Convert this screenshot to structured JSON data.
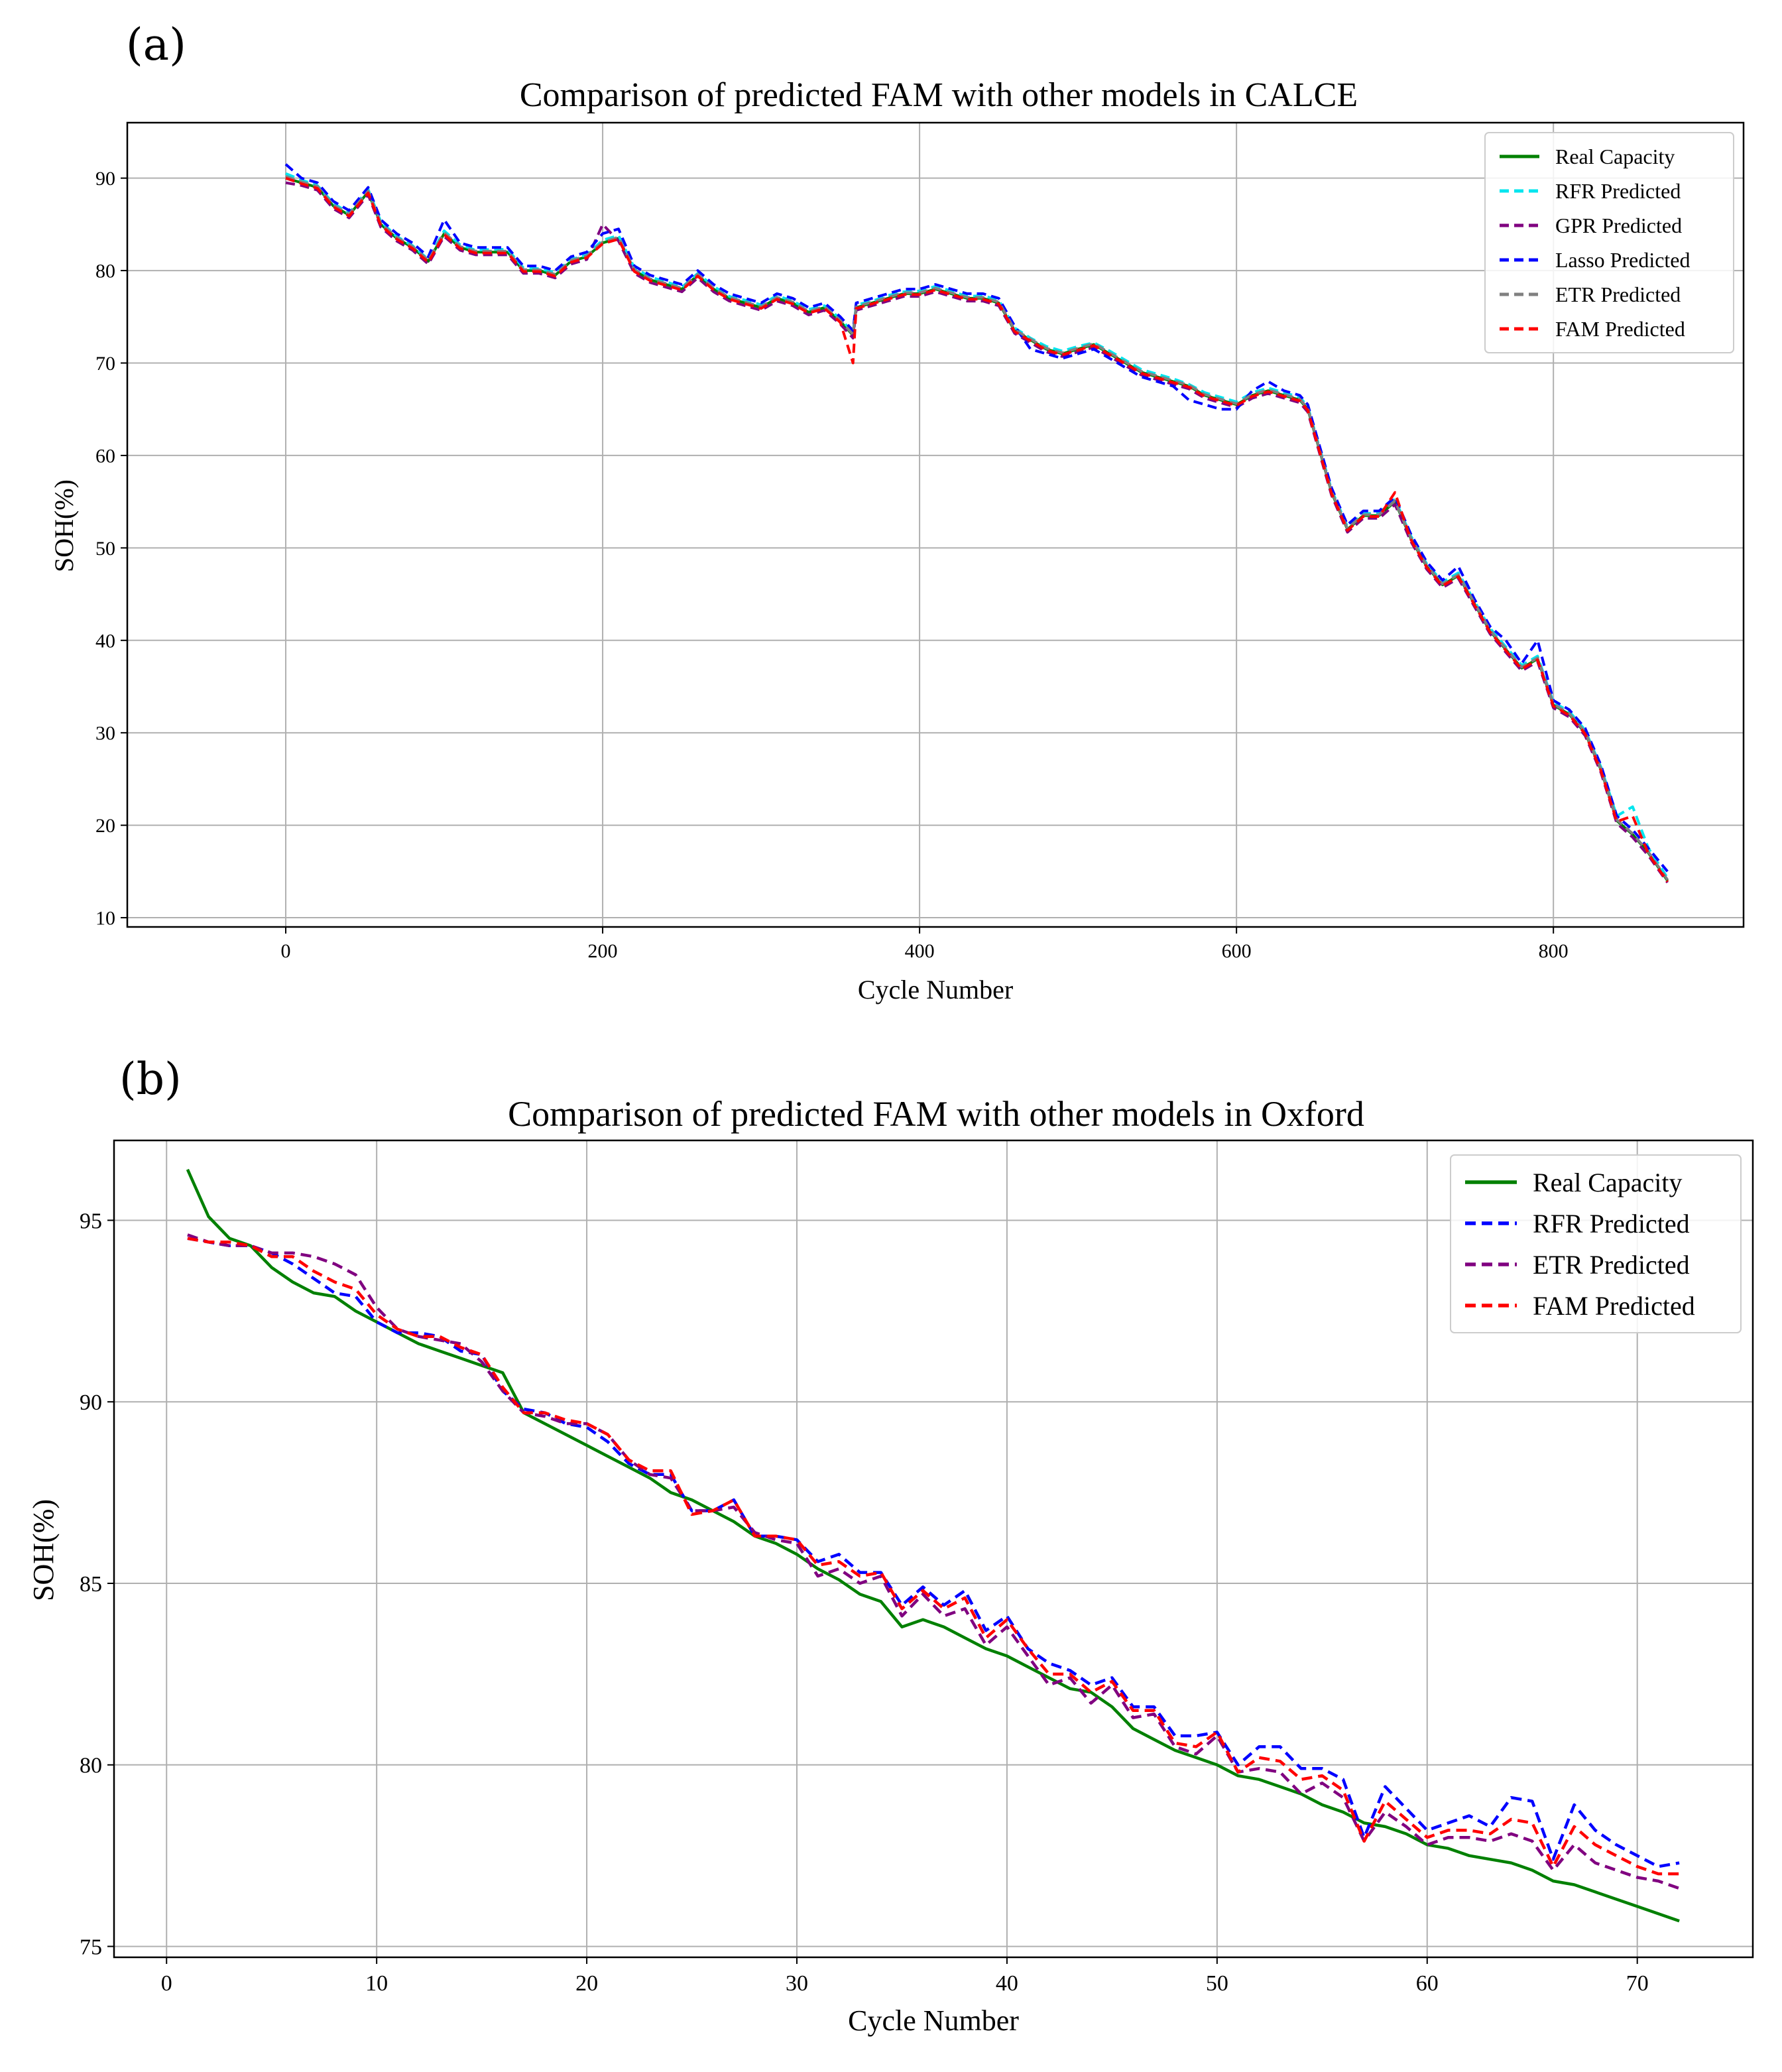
{
  "chart_data": [
    {
      "type": "line",
      "panel_label": "(a)",
      "title": "Comparison of predicted FAM  with other models in CALCE",
      "xlabel": "Cycle Number",
      "ylabel": "SOH(%)",
      "xlim": [
        -100,
        920
      ],
      "ylim": [
        9,
        96
      ],
      "xticks": [
        0,
        200,
        400,
        600,
        800
      ],
      "yticks": [
        10,
        20,
        30,
        40,
        50,
        60,
        70,
        80,
        90
      ],
      "grid": true,
      "legend_position": "top-right",
      "x": [
        0,
        10,
        20,
        30,
        40,
        52,
        60,
        70,
        80,
        90,
        100,
        110,
        120,
        130,
        140,
        150,
        160,
        170,
        180,
        190,
        200,
        210,
        220,
        230,
        240,
        250,
        260,
        270,
        280,
        290,
        300,
        310,
        320,
        330,
        340,
        350,
        358,
        360,
        370,
        380,
        390,
        400,
        410,
        420,
        430,
        440,
        450,
        460,
        470,
        480,
        490,
        500,
        510,
        520,
        530,
        540,
        550,
        560,
        570,
        580,
        590,
        600,
        610,
        620,
        630,
        640,
        645,
        650,
        660,
        670,
        680,
        690,
        700,
        710,
        720,
        730,
        740,
        750,
        760,
        770,
        780,
        790,
        800,
        810,
        820,
        830,
        840,
        850,
        860,
        872
      ],
      "series": [
        {
          "name": "Real Capacity",
          "color": "#008000",
          "style": "solid",
          "values": [
            90,
            89.5,
            89,
            87,
            86,
            88.5,
            85,
            83.5,
            82.5,
            81,
            84,
            82.5,
            82,
            82,
            82,
            80,
            80,
            79.5,
            81,
            81.5,
            83,
            83.5,
            80,
            79,
            78.5,
            78,
            79.5,
            78,
            77,
            76.5,
            76,
            77,
            76.5,
            75.5,
            76,
            74.5,
            73,
            76,
            76.5,
            77,
            77.5,
            77.5,
            78,
            77.5,
            77,
            77,
            76.5,
            73.5,
            72.5,
            71.5,
            71,
            71.5,
            72,
            71,
            70,
            69,
            68.5,
            68,
            67.5,
            66.5,
            66,
            65.5,
            66.5,
            67,
            66.5,
            66,
            65,
            62,
            56,
            52,
            53.5,
            53.5,
            55,
            51,
            48,
            46,
            47,
            44,
            41,
            39,
            37,
            38,
            33,
            32,
            30,
            26,
            20.5,
            19,
            17,
            14
          ]
        },
        {
          "name": "RFR Predicted",
          "color": "#00e5ee",
          "style": "dashed",
          "values": [
            90.5,
            89.8,
            89.2,
            87.3,
            86.2,
            88.8,
            85.3,
            83.7,
            82.7,
            81.2,
            84.3,
            82.8,
            82.2,
            82.3,
            82.3,
            80.3,
            80.2,
            79.8,
            81.2,
            81.7,
            83.3,
            83.8,
            80.3,
            79.3,
            78.8,
            78.2,
            79.7,
            78.3,
            77.2,
            76.8,
            76.3,
            77.3,
            76.7,
            75.8,
            76.2,
            74.8,
            73.3,
            76.3,
            76.7,
            77.3,
            77.7,
            77.8,
            78.3,
            77.8,
            77.2,
            77.3,
            76.8,
            73.8,
            72.7,
            71.8,
            71.3,
            71.8,
            72.2,
            71.3,
            70.3,
            69.3,
            68.8,
            68.3,
            67.7,
            66.8,
            66.3,
            65.8,
            66.8,
            67.3,
            66.8,
            66.3,
            65.3,
            62.3,
            56.3,
            52.3,
            53.7,
            53.8,
            55.3,
            51.3,
            48.3,
            46.3,
            47.3,
            44.3,
            41.3,
            39.3,
            37.3,
            38.3,
            33.3,
            32.3,
            30.3,
            26.3,
            21,
            22,
            17.5,
            14.3
          ]
        },
        {
          "name": "GPR Predicted",
          "color": "#800080",
          "style": "dashed",
          "values": [
            89.5,
            89.2,
            88.7,
            86.7,
            85.7,
            88.2,
            84.7,
            83.2,
            82.2,
            80.7,
            83.7,
            82.2,
            81.7,
            81.7,
            81.7,
            79.7,
            79.7,
            79.2,
            80.7,
            81.2,
            85,
            83.2,
            79.7,
            78.7,
            78.2,
            77.7,
            79.2,
            77.7,
            76.7,
            76.2,
            75.7,
            76.7,
            76.2,
            75.2,
            75.7,
            74.2,
            72.7,
            75.7,
            76.2,
            76.7,
            77.2,
            77.2,
            77.7,
            77.2,
            76.7,
            76.7,
            76.2,
            73.2,
            72.2,
            71.2,
            70.7,
            71.2,
            71.7,
            70.7,
            69.7,
            68.7,
            68.2,
            67.7,
            67.2,
            66.2,
            65.7,
            65.2,
            66.2,
            66.7,
            66.2,
            65.7,
            64.7,
            61.7,
            55.7,
            51.7,
            53.2,
            53.2,
            54.7,
            50.7,
            47.7,
            45.7,
            46.7,
            43.7,
            40.7,
            38.7,
            36.7,
            37.7,
            32.7,
            31.7,
            29.7,
            25.7,
            20.2,
            18.7,
            16.7,
            13.8
          ]
        },
        {
          "name": "Lasso Predicted",
          "color": "#0000ff",
          "style": "dashed",
          "values": [
            91.5,
            90,
            89.5,
            87.5,
            86.5,
            89,
            85.5,
            84,
            83,
            81.5,
            85.5,
            83,
            82.5,
            82.5,
            82.5,
            80.5,
            80.5,
            80,
            81.5,
            82,
            84,
            84.5,
            80.5,
            79.5,
            79,
            78.5,
            80,
            78.5,
            77.5,
            77,
            76.5,
            77.5,
            77,
            76,
            76.5,
            75,
            73.5,
            76.5,
            77,
            77.5,
            78,
            78,
            78.5,
            78,
            77.5,
            77.5,
            77,
            74,
            71.5,
            71,
            70.5,
            71,
            71.5,
            70.5,
            69.5,
            68.5,
            68,
            67.5,
            66,
            65.5,
            65,
            65,
            67,
            68,
            67,
            66.5,
            65.5,
            62.5,
            56.5,
            52.5,
            54,
            54,
            55.5,
            51.5,
            48.5,
            46.5,
            48,
            44.5,
            41.5,
            40,
            37.5,
            40,
            33.5,
            32.5,
            30.5,
            26.5,
            21,
            19.5,
            17.5,
            15
          ]
        },
        {
          "name": "ETR Predicted",
          "color": "#808080",
          "style": "dashed",
          "values": [
            90.2,
            89.6,
            89.1,
            87.1,
            86.1,
            88.6,
            85.1,
            83.6,
            82.6,
            81.1,
            84.1,
            82.6,
            82.1,
            82.1,
            82.1,
            80.1,
            80.1,
            79.6,
            81.1,
            81.6,
            83.1,
            83.6,
            80.1,
            79.1,
            78.6,
            78.1,
            79.6,
            78.1,
            77.1,
            76.6,
            76.1,
            77.1,
            76.6,
            75.6,
            76.1,
            74.6,
            73.1,
            76.1,
            76.6,
            77.1,
            77.6,
            77.6,
            78.1,
            77.6,
            77.1,
            77.1,
            76.6,
            73.6,
            72.6,
            71.6,
            71.1,
            71.6,
            72.1,
            71.1,
            70.1,
            69.1,
            68.6,
            68.1,
            67.6,
            66.6,
            66.1,
            65.6,
            66.6,
            67.1,
            66.6,
            66.1,
            65.1,
            62.1,
            56.1,
            52.1,
            53.6,
            53.6,
            55.1,
            51.1,
            48.1,
            46.1,
            47.1,
            44.1,
            41.1,
            39.1,
            37.1,
            38.1,
            33.1,
            32.1,
            30.1,
            26.1,
            20.6,
            19.1,
            17.1,
            14.1
          ]
        },
        {
          "name": "FAM Predicted",
          "color": "#ff0000",
          "style": "dashed",
          "values": [
            90,
            89.4,
            88.9,
            86.9,
            85.9,
            88.4,
            84.9,
            83.4,
            82.4,
            80.9,
            83.9,
            82.4,
            81.9,
            81.9,
            81.9,
            79.9,
            79.9,
            79.4,
            80.9,
            81.4,
            82.9,
            83.4,
            79.9,
            78.9,
            78.4,
            77.9,
            79.4,
            77.9,
            76.9,
            76.4,
            75.9,
            76.9,
            76.4,
            75.4,
            75.9,
            74.4,
            70,
            75.9,
            76.4,
            76.9,
            77.4,
            77.4,
            77.9,
            77.4,
            76.9,
            76.9,
            76.4,
            73.4,
            72.4,
            71.4,
            70.9,
            71.4,
            71.9,
            70.9,
            69.9,
            68.9,
            68.4,
            67.9,
            67.4,
            66.4,
            65.9,
            65.4,
            66.4,
            66.9,
            66.4,
            65.9,
            64.9,
            61.9,
            55.9,
            51.9,
            53.4,
            53.4,
            56,
            50.9,
            47.9,
            45.9,
            46.9,
            43.9,
            40.9,
            38.9,
            36.9,
            37.9,
            32.9,
            31.9,
            29.9,
            25.9,
            20.4,
            21,
            16.9,
            13.9
          ]
        }
      ]
    },
    {
      "type": "line",
      "panel_label": "(b)",
      "title": "Comparison of predicted FAM  with other models in Oxford",
      "xlabel": "Cycle Number",
      "ylabel": "SOH(%)",
      "xlim": [
        -2.5,
        75.5
      ],
      "ylim": [
        74.7,
        97.2
      ],
      "xticks": [
        0,
        10,
        20,
        30,
        40,
        50,
        60,
        70
      ],
      "yticks": [
        75,
        80,
        85,
        90,
        95
      ],
      "grid": true,
      "legend_position": "top-right",
      "x": [
        1,
        2,
        3,
        4,
        5,
        6,
        7,
        8,
        9,
        10,
        11,
        12,
        13,
        14,
        15,
        16,
        17,
        18,
        19,
        20,
        21,
        22,
        23,
        24,
        25,
        26,
        27,
        28,
        29,
        30,
        31,
        32,
        33,
        34,
        35,
        36,
        37,
        38,
        39,
        40,
        41,
        42,
        43,
        44,
        45,
        46,
        47,
        48,
        49,
        50,
        51,
        52,
        53,
        54,
        55,
        56,
        57,
        58,
        59,
        60,
        61,
        62,
        63,
        64,
        65,
        66,
        67,
        68,
        69,
        70,
        71,
        72
      ],
      "series": [
        {
          "name": "Real Capacity",
          "color": "#008000",
          "style": "solid",
          "values": [
            96.4,
            95.1,
            94.5,
            94.3,
            93.7,
            93.3,
            93.0,
            92.9,
            92.5,
            92.2,
            91.9,
            91.6,
            91.4,
            91.2,
            91.0,
            90.8,
            89.7,
            89.4,
            89.1,
            88.8,
            88.5,
            88.2,
            87.9,
            87.5,
            87.3,
            87.0,
            86.7,
            86.3,
            86.1,
            85.8,
            85.4,
            85.1,
            84.7,
            84.5,
            83.8,
            84.0,
            83.8,
            83.5,
            83.2,
            83.0,
            82.7,
            82.4,
            82.1,
            82.0,
            81.6,
            81.0,
            80.7,
            80.4,
            80.2,
            80.0,
            79.7,
            79.6,
            79.4,
            79.2,
            78.9,
            78.7,
            78.4,
            78.3,
            78.1,
            77.8,
            77.7,
            77.5,
            77.4,
            77.3,
            77.1,
            76.8,
            76.7,
            76.5,
            76.3,
            76.1,
            75.9,
            75.7
          ]
        },
        {
          "name": "RFR Predicted",
          "color": "#0000ff",
          "style": "dashed",
          "values": [
            94.5,
            94.4,
            94.3,
            94.3,
            94.1,
            93.8,
            93.4,
            93.0,
            92.9,
            92.2,
            91.9,
            91.9,
            91.8,
            91.4,
            91.3,
            90.3,
            89.8,
            89.7,
            89.4,
            89.3,
            88.9,
            88.3,
            88.0,
            88.0,
            87.0,
            87.0,
            87.3,
            86.3,
            86.3,
            86.2,
            85.6,
            85.8,
            85.3,
            85.3,
            84.4,
            84.9,
            84.4,
            84.8,
            83.7,
            84.1,
            83.2,
            82.8,
            82.6,
            82.2,
            82.4,
            81.6,
            81.6,
            80.8,
            80.8,
            80.9,
            80.0,
            80.5,
            80.5,
            79.9,
            79.9,
            79.6,
            78.0,
            79.4,
            78.8,
            78.2,
            78.4,
            78.6,
            78.3,
            79.1,
            79.0,
            77.4,
            78.9,
            78.2,
            77.8,
            77.5,
            77.2,
            77.3
          ]
        },
        {
          "name": "ETR Predicted",
          "color": "#800080",
          "style": "dashed",
          "values": [
            94.6,
            94.4,
            94.3,
            94.3,
            94.1,
            94.1,
            94.0,
            93.8,
            93.5,
            92.6,
            92.0,
            91.8,
            91.7,
            91.6,
            91.1,
            90.3,
            89.7,
            89.6,
            89.4,
            89.4,
            89.1,
            88.4,
            88.0,
            87.9,
            87.0,
            87.0,
            87.1,
            86.4,
            86.2,
            86.1,
            85.2,
            85.4,
            85.0,
            85.2,
            84.1,
            84.7,
            84.1,
            84.3,
            83.3,
            83.8,
            83.0,
            82.2,
            82.4,
            81.7,
            82.2,
            81.3,
            81.4,
            80.5,
            80.3,
            80.8,
            79.8,
            79.9,
            79.8,
            79.2,
            79.5,
            79.1,
            77.9,
            78.7,
            78.3,
            77.8,
            78.0,
            78.0,
            77.9,
            78.1,
            77.9,
            77.1,
            77.8,
            77.3,
            77.1,
            76.9,
            76.8,
            76.6
          ]
        },
        {
          "name": "FAM Predicted",
          "color": "#ff0000",
          "style": "dashed",
          "values": [
            94.5,
            94.4,
            94.4,
            94.3,
            94.0,
            94.0,
            93.6,
            93.3,
            93.1,
            92.4,
            92.0,
            91.8,
            91.8,
            91.5,
            91.3,
            90.4,
            89.7,
            89.7,
            89.5,
            89.4,
            89.1,
            88.4,
            88.1,
            88.1,
            86.9,
            87.0,
            87.3,
            86.3,
            86.3,
            86.2,
            85.5,
            85.6,
            85.2,
            85.3,
            84.3,
            84.8,
            84.3,
            84.6,
            83.5,
            84.0,
            83.2,
            82.5,
            82.5,
            82.0,
            82.3,
            81.5,
            81.5,
            80.6,
            80.5,
            80.9,
            79.8,
            80.2,
            80.1,
            79.6,
            79.7,
            79.3,
            77.9,
            79.0,
            78.5,
            78.0,
            78.2,
            78.2,
            78.1,
            78.5,
            78.4,
            77.2,
            78.3,
            77.8,
            77.5,
            77.2,
            77.0,
            77.0
          ]
        }
      ]
    }
  ]
}
